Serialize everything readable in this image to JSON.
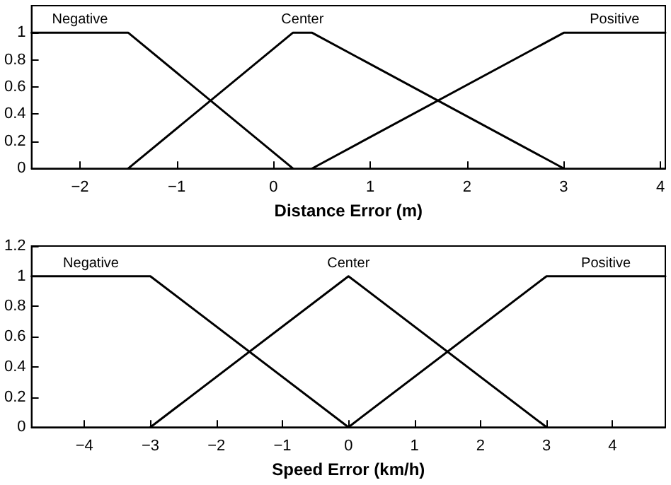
{
  "chart_data": [
    {
      "type": "line",
      "xlabel": "Distance Error (m)",
      "xlim": [
        -2.5,
        4.05
      ],
      "xticks": [
        -2,
        -1,
        0,
        1,
        2,
        3,
        4
      ],
      "ylim": [
        0,
        1.2
      ],
      "yticks": [
        0,
        0.2,
        0.4,
        0.6,
        0.8,
        1
      ],
      "grid": false,
      "marker": "none",
      "line_style": "solid",
      "legend": false,
      "series": [
        {
          "name": "Negative",
          "color": "#000000",
          "x": [
            -2.5,
            -1.5,
            0.2
          ],
          "values": [
            1,
            1,
            0
          ]
        },
        {
          "name": "Center",
          "color": "#000000",
          "x": [
            -1.5,
            0.2,
            0.4,
            3
          ],
          "values": [
            0,
            1,
            1,
            0
          ]
        },
        {
          "name": "Positive",
          "color": "#000000",
          "x": [
            0.4,
            3,
            4.05
          ],
          "values": [
            0,
            1,
            1
          ]
        }
      ]
    },
    {
      "type": "line",
      "xlabel": "Speed Error (km/h)",
      "xlim": [
        -4.8,
        4.8
      ],
      "xticks": [
        -4,
        -3,
        -2,
        -1,
        0,
        1,
        2,
        3,
        4
      ],
      "ylim": [
        0,
        1.2
      ],
      "yticks": [
        0,
        0.2,
        0.4,
        0.6,
        0.8,
        1,
        1.2
      ],
      "grid": false,
      "marker": "none",
      "line_style": "solid",
      "legend": false,
      "series": [
        {
          "name": "Negative",
          "color": "#000000",
          "x": [
            -4.8,
            -3,
            0
          ],
          "values": [
            1,
            1,
            0
          ]
        },
        {
          "name": "Center",
          "color": "#000000",
          "x": [
            -3,
            0,
            3
          ],
          "values": [
            0,
            1,
            0
          ]
        },
        {
          "name": "Positive",
          "color": "#000000",
          "x": [
            0,
            3,
            4.8
          ],
          "values": [
            0,
            1,
            1
          ]
        }
      ]
    }
  ]
}
